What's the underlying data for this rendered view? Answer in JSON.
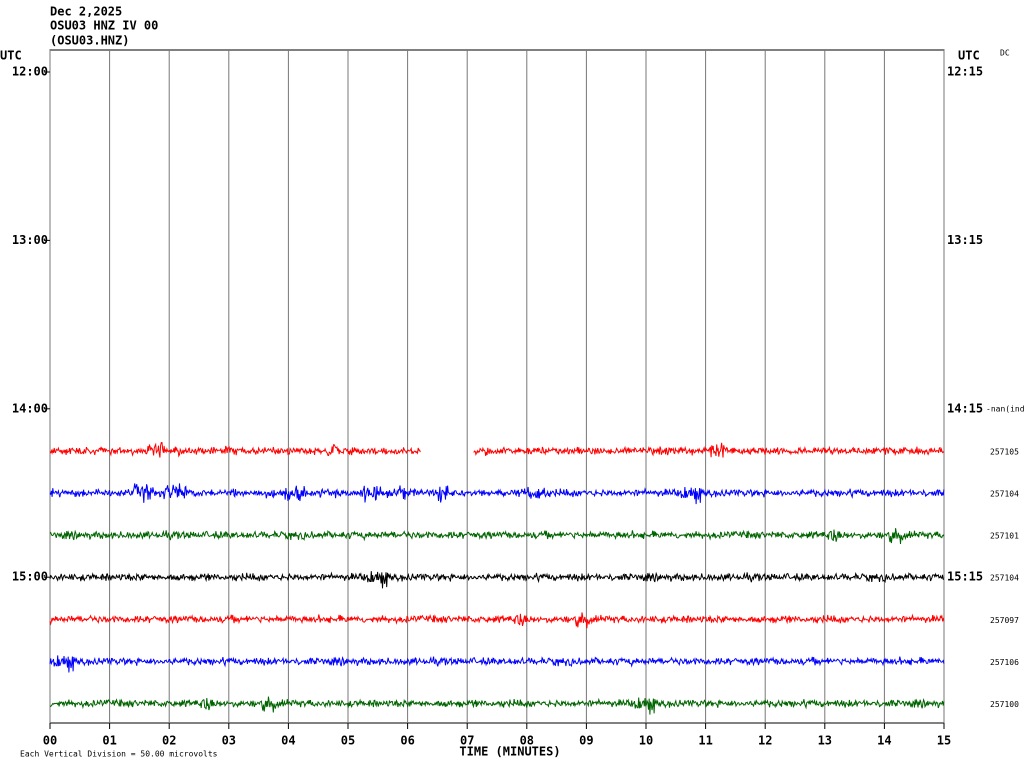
{
  "chart_data": {
    "type": "helicorder",
    "date": "Dec 2,2025",
    "station": "OSU03 HNZ IV 00",
    "channel": "(OSU03.HNZ)",
    "left_axis_label": "UTC",
    "right_axis_label": "UTC",
    "filter_label": "DC",
    "xlabel": "TIME (MINUTES)",
    "scale_note": "Each Vertical Division =   50.00 microvolts",
    "xlim": [
      0,
      15
    ],
    "xticks": [
      {
        "value": 0,
        "label": "00"
      },
      {
        "value": 1,
        "label": "01"
      },
      {
        "value": 2,
        "label": "02"
      },
      {
        "value": 3,
        "label": "03"
      },
      {
        "value": 4,
        "label": "04"
      },
      {
        "value": 5,
        "label": "05"
      },
      {
        "value": 6,
        "label": "06"
      },
      {
        "value": 7,
        "label": "07"
      },
      {
        "value": 8,
        "label": "08"
      },
      {
        "value": 9,
        "label": "09"
      },
      {
        "value": 10,
        "label": "10"
      },
      {
        "value": 11,
        "label": "11"
      },
      {
        "value": 12,
        "label": "12"
      },
      {
        "value": 13,
        "label": "13"
      },
      {
        "value": 14,
        "label": "14"
      },
      {
        "value": 15,
        "label": "15"
      }
    ],
    "left_hour_labels": [
      "12:00",
      "13:00",
      "14:00",
      "15:00"
    ],
    "right_hour_labels": [
      "12:15",
      "13:15",
      "14:15",
      "15:15"
    ],
    "rows": [
      {
        "label": "-nan(ind"
      },
      {
        "label": "257105",
        "color": "#ff0000",
        "segments": [
          [
            0,
            6.22
          ],
          [
            7.11,
            15
          ]
        ]
      },
      {
        "label": "257104",
        "color": "#0000ff",
        "segments": [
          [
            0,
            15
          ]
        ]
      },
      {
        "label": "257101",
        "color": "#006400",
        "segments": [
          [
            0,
            15
          ]
        ]
      },
      {
        "label": "257104",
        "color": "#000000",
        "segments": [
          [
            0,
            15
          ]
        ]
      },
      {
        "label": "257097",
        "color": "#ff0000",
        "segments": [
          [
            0,
            15
          ]
        ]
      },
      {
        "label": "257106",
        "color": "#0000ff",
        "segments": [
          [
            0,
            15
          ]
        ]
      },
      {
        "label": "257100",
        "color": "#006400",
        "segments": [
          [
            0,
            15
          ]
        ]
      }
    ]
  }
}
